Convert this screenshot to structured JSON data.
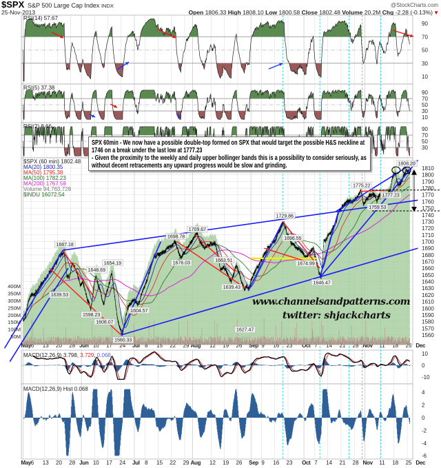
{
  "header": {
    "symbol": "$SPX",
    "name": "S&P 500 Large Cap Index",
    "exchange": "INDX",
    "date": "25-Nov-2013",
    "watermark": "@StockCharts.com",
    "open_label": "Open",
    "open": "1806.33",
    "high_label": "High",
    "high": "1808.10",
    "low_label": "Low",
    "low": "1800.58",
    "close_label": "Close",
    "close": "1802.48",
    "volume_label": "Volume",
    "volume": "20.2M",
    "chg_label": "Chg",
    "chg": "-2.28 (-0.13%)",
    "down_icon": "triangle-down"
  },
  "legends": {
    "rsi14": "RSI(14) 57.67",
    "rsi5": "RSI(5) 37.38",
    "rsi2": "RSI(2) 8.66",
    "price": "$SPX (60 min) 1802.48",
    "ma20": "MA(20) 1800.35",
    "ma50": "MA(50) 1795.38",
    "ma100": "MA(100) 1782.23",
    "ma200": "MA(200) 1767.59",
    "volume": "Volume 94,763,728",
    "indu": "$INDU  16072.54",
    "macd_name": "MACD(12,26,9)",
    "macd_v1": "3.798",
    "macd_v2": "3.729",
    "macd_v3": "0.068",
    "hist": "MACD(12,26,9) Hist 0.068"
  },
  "annotation": {
    "lines": [
      "SPX 60min - We now have a possible double-top formed on SPX that would target the possible H&S neckline at 1746 on a break under the last low at 1777.23",
      "- Given the proximity to the weekly and daily upper bollinger bands this is a possibility to consider seriously, as without decent retracements any upward progress would be slow and grinding."
    ],
    "website": "www.channelsandpatterns.com",
    "twitter": "twitter: shjackcharts"
  },
  "colors": {
    "ma20": "#2020c0",
    "ma50": "#e02020",
    "ma100": "#207020",
    "ma200": "#e020e0",
    "indu_area": "#a9cfa0",
    "trend_blue": "#1a1aff",
    "trend_red": "#ff1a1a",
    "macd": "#000000",
    "signal": "#e02020",
    "hist": "#2e5f97",
    "event_line": "#22d0e0",
    "neckline": "#f0f000"
  },
  "chart_data": {
    "type": "line",
    "interval": "60 min",
    "price_ylim": [
      1555,
      1815
    ],
    "price_ticks": [
      1560,
      1570,
      1580,
      1590,
      1600,
      1610,
      1620,
      1630,
      1640,
      1650,
      1660,
      1670,
      1680,
      1690,
      1700,
      1710,
      1720,
      1730,
      1740,
      1750,
      1760,
      1770,
      1780,
      1790,
      1800,
      1810
    ],
    "volume_ticks": [
      "50M",
      "100M",
      "150M",
      "200M",
      "250M",
      "300M",
      "350M",
      "400M"
    ],
    "rsi14_ticks": [
      90,
      70,
      50,
      30,
      10
    ],
    "rsi5_ticks": [
      90,
      70,
      50,
      30,
      10
    ],
    "rsi2_ticks": [
      90,
      70,
      50,
      30
    ],
    "macd_ticks": [
      10,
      0,
      -10
    ],
    "hist_ticks": [
      4,
      2,
      0,
      -2,
      -4,
      -6
    ],
    "x_ticks": [
      {
        "label": "May",
        "date": "2013-05-01",
        "bold": true
      },
      {
        "label": "6",
        "date": "2013-05-06"
      },
      {
        "label": "13",
        "date": "2013-05-13"
      },
      {
        "label": "20",
        "date": "2013-05-20"
      },
      {
        "label": "28",
        "date": "2013-05-28"
      },
      {
        "label": "Jun",
        "date": "2013-06-03",
        "bold": true
      },
      {
        "label": "10",
        "date": "2013-06-10"
      },
      {
        "label": "17",
        "date": "2013-06-17"
      },
      {
        "label": "24",
        "date": "2013-06-24"
      },
      {
        "label": "Jul",
        "date": "2013-07-01",
        "bold": true
      },
      {
        "label": "8",
        "date": "2013-07-08"
      },
      {
        "label": "15",
        "date": "2013-07-15"
      },
      {
        "label": "22",
        "date": "2013-07-22"
      },
      {
        "label": "29",
        "date": "2013-07-29"
      },
      {
        "label": "Aug",
        "date": "2013-08-01",
        "bold": true
      },
      {
        "label": "12",
        "date": "2013-08-12"
      },
      {
        "label": "19",
        "date": "2013-08-19"
      },
      {
        "label": "26",
        "date": "2013-08-26"
      },
      {
        "label": "Sep",
        "date": "2013-09-03",
        "bold": true
      },
      {
        "label": "9",
        "date": "2013-09-09"
      },
      {
        "label": "16",
        "date": "2013-09-16"
      },
      {
        "label": "23",
        "date": "2013-09-23"
      },
      {
        "label": "Oct",
        "date": "2013-10-01",
        "bold": true
      },
      {
        "label": "7",
        "date": "2013-10-07"
      },
      {
        "label": "14",
        "date": "2013-10-14"
      },
      {
        "label": "21",
        "date": "2013-10-21"
      },
      {
        "label": "28",
        "date": "2013-10-28"
      },
      {
        "label": "Nov",
        "date": "2013-11-01",
        "bold": true
      },
      {
        "label": "11",
        "date": "2013-11-11"
      },
      {
        "label": "18",
        "date": "2013-11-18"
      },
      {
        "label": "25",
        "date": "2013-11-25"
      },
      {
        "label": "Dec",
        "date": "2013-12-02",
        "bold": true
      }
    ],
    "event_lines": [
      "2013-09-19",
      "2013-10-09",
      "2013-10-24",
      "2013-10-31",
      "2013-11-11"
    ],
    "price_pivots": [
      [
        "2013-05-01",
        1582
      ],
      [
        "2013-05-03",
        1614
      ],
      [
        "2013-05-08",
        1628
      ],
      [
        "2013-05-14",
        1650
      ],
      [
        "2013-05-17",
        1667
      ],
      [
        "2013-05-22",
        1687.18
      ],
      [
        "2013-05-23",
        1650
      ],
      [
        "2013-05-24",
        1645
      ],
      [
        "2013-05-28",
        1670
      ],
      [
        "2013-05-30",
        1648
      ],
      [
        "2013-05-31",
        1636
      ],
      [
        "2013-06-03",
        1640
      ],
      [
        "2013-06-05",
        1610
      ],
      [
        "2013-06-06",
        1598.23
      ],
      [
        "2013-06-10",
        1648.69
      ],
      [
        "2013-06-13",
        1608.07
      ],
      [
        "2013-06-18",
        1654.19
      ],
      [
        "2013-06-20",
        1585
      ],
      [
        "2013-06-24",
        1560.33
      ],
      [
        "2013-06-26",
        1600
      ],
      [
        "2013-06-28",
        1612
      ],
      [
        "2013-07-02",
        1604.57
      ],
      [
        "2013-07-05",
        1630
      ],
      [
        "2013-07-11",
        1675
      ],
      [
        "2013-07-15",
        1682
      ],
      [
        "2013-07-19",
        1693
      ],
      [
        "2013-07-23",
        1698.78
      ],
      [
        "2013-07-25",
        1676.03
      ],
      [
        "2013-08-02",
        1709.67
      ],
      [
        "2013-08-07",
        1690
      ],
      [
        "2013-08-13",
        1697
      ],
      [
        "2013-08-15",
        1660
      ],
      [
        "2013-08-16",
        1663.51
      ],
      [
        "2013-08-21",
        1639.43
      ],
      [
        "2013-08-23",
        1664
      ],
      [
        "2013-08-28",
        1627.47
      ],
      [
        "2013-08-30",
        1633
      ],
      [
        "2013-09-04",
        1655
      ],
      [
        "2013-09-11",
        1690
      ],
      [
        "2013-09-16",
        1705
      ],
      [
        "2013-09-19",
        1729.86
      ],
      [
        "2013-09-20",
        1712
      ],
      [
        "2013-09-24",
        1696.55
      ],
      [
        "2013-09-27",
        1688
      ],
      [
        "2013-10-01",
        1674.99
      ],
      [
        "2013-10-04",
        1690
      ],
      [
        "2013-10-08",
        1655
      ],
      [
        "2013-10-09",
        1646.47
      ],
      [
        "2013-10-10",
        1700
      ],
      [
        "2013-10-14",
        1710
      ],
      [
        "2013-10-17",
        1733
      ],
      [
        "2013-10-18",
        1745
      ],
      [
        "2013-10-22",
        1759
      ],
      [
        "2013-10-25",
        1759
      ],
      [
        "2013-10-30",
        1775.22
      ],
      [
        "2013-10-31",
        1757
      ],
      [
        "2013-11-01",
        1765
      ],
      [
        "2013-11-06",
        1770
      ],
      [
        "2013-11-07",
        1759.53
      ],
      [
        "2013-11-08",
        1770
      ],
      [
        "2013-11-12",
        1767
      ],
      [
        "2013-11-14",
        1777.23
      ],
      [
        "2013-11-15",
        1798
      ],
      [
        "2013-11-18",
        1802
      ],
      [
        "2013-11-19",
        1785
      ],
      [
        "2013-11-21",
        1797
      ],
      [
        "2013-11-22",
        1808.2
      ],
      [
        "2013-11-25",
        1802.48
      ]
    ],
    "price_labels": [
      {
        "text": "1687.18",
        "date": "2013-05-22",
        "price": 1687.18,
        "pos": "above"
      },
      {
        "text": "1639.53",
        "date": "2013-05-20",
        "price": 1628,
        "pos": "below"
      },
      {
        "text": "1648.69",
        "date": "2013-06-10",
        "price": 1648.69,
        "pos": "above"
      },
      {
        "text": "1598.23",
        "date": "2013-06-06",
        "price": 1598.23,
        "pos": "below"
      },
      {
        "text": "1608.07",
        "date": "2013-06-13",
        "price": 1608.07,
        "pos": "below"
      },
      {
        "text": "1654.19",
        "date": "2013-06-18",
        "price": 1654.19,
        "pos": "above"
      },
      {
        "text": "1560.33",
        "date": "2013-06-24",
        "price": 1560.33,
        "pos": "below"
      },
      {
        "text": "1604.57",
        "date": "2013-07-02",
        "price": 1604.57,
        "pos": "below"
      },
      {
        "text": "1698.78",
        "date": "2013-07-23",
        "price": 1698.78,
        "pos": "above"
      },
      {
        "text": "1676.03",
        "date": "2013-07-25",
        "price": 1676.03,
        "pos": "below"
      },
      {
        "text": "1709.67",
        "date": "2013-08-02",
        "price": 1709.67,
        "pos": "above"
      },
      {
        "text": "1663.51",
        "date": "2013-08-16",
        "price": 1663.51,
        "pos": "above"
      },
      {
        "text": "1639.43",
        "date": "2013-08-21",
        "price": 1639.43,
        "pos": "below"
      },
      {
        "text": "1627.47",
        "date": "2013-08-28",
        "price": 1627.47,
        "pos": "below"
      },
      {
        "text": "1729.86",
        "date": "2013-09-19",
        "price": 1729.86,
        "pos": "above"
      },
      {
        "text": "1696.55",
        "date": "2013-09-24",
        "price": 1696.55,
        "pos": "above"
      },
      {
        "text": "1674.99",
        "date": "2013-10-01",
        "price": 1674.99,
        "pos": "below"
      },
      {
        "text": "1646.47",
        "date": "2013-10-09",
        "price": 1646.47,
        "pos": "below"
      },
      {
        "text": "1775.22",
        "date": "2013-10-30",
        "price": 1775.22,
        "pos": "above"
      },
      {
        "text": "1759.53",
        "date": "2013-11-07",
        "price": 1759.53,
        "pos": "below"
      },
      {
        "text": "1777.23",
        "date": "2013-11-14",
        "price": 1777.23,
        "pos": "below"
      },
      {
        "text": "1808.20",
        "date": "2013-11-22",
        "price": 1808.2,
        "pos": "above"
      }
    ],
    "trendlines": [
      {
        "color": "blue",
        "points": [
          [
            "2013-05-22",
            1687
          ],
          [
            "2013-12-02",
            1762
          ]
        ]
      },
      {
        "color": "blue",
        "points": [
          [
            "2013-06-24",
            1560
          ],
          [
            "2013-12-02",
            1690
          ]
        ]
      },
      {
        "color": "blue",
        "points": [
          [
            "2013-04-22",
            1540
          ],
          [
            "2013-05-22",
            1687
          ]
        ]
      },
      {
        "color": "blue",
        "points": [
          [
            "2013-04-24",
            1520
          ],
          [
            "2013-05-24",
            1660
          ]
        ]
      },
      {
        "color": "blue",
        "points": [
          [
            "2013-10-17",
            1745
          ],
          [
            "2013-12-02",
            1822
          ]
        ]
      },
      {
        "color": "blue",
        "points": [
          [
            "2013-10-09",
            1646
          ],
          [
            "2013-12-02",
            1822
          ]
        ]
      },
      {
        "color": "blue",
        "points": [
          [
            "2013-06-24",
            1562
          ],
          [
            "2013-07-16",
            1700
          ]
        ]
      },
      {
        "color": "blue",
        "points": [
          [
            "2013-08-30",
            1626
          ],
          [
            "2013-09-19",
            1729.86
          ]
        ]
      },
      {
        "color": "blue",
        "points": [
          [
            "2013-10-09",
            1646
          ],
          [
            "2013-10-18",
            1745
          ]
        ]
      },
      {
        "color": "red",
        "points": [
          [
            "2013-05-22",
            1687
          ],
          [
            "2013-06-08",
            1615
          ]
        ]
      },
      {
        "color": "red",
        "points": [
          [
            "2013-05-15",
            1660
          ],
          [
            "2013-06-24",
            1560
          ]
        ]
      },
      {
        "color": "red",
        "points": [
          [
            "2013-08-02",
            1709.67
          ],
          [
            "2013-08-23",
            1655
          ]
        ]
      },
      {
        "color": "red",
        "points": [
          [
            "2013-07-24",
            1700
          ],
          [
            "2013-08-29",
            1630
          ]
        ]
      },
      {
        "color": "red",
        "points": [
          [
            "2013-09-19",
            1729.86
          ],
          [
            "2013-10-09",
            1660
          ]
        ]
      },
      {
        "color": "red",
        "points": [
          [
            "2013-09-10",
            1690
          ],
          [
            "2013-10-08",
            1665
          ]
        ]
      },
      {
        "color": "red",
        "points": [
          [
            "2013-10-30",
            1775.22
          ],
          [
            "2013-11-14",
            1777.23
          ]
        ]
      }
    ],
    "neckline": {
      "price": 1674.99,
      "from": "2013-09-03",
      "to": "2013-10-08"
    },
    "target_levels": [
      1777.23,
      1746
    ],
    "double_top_dates": [
      "2013-11-18",
      "2013-11-22"
    ]
  }
}
